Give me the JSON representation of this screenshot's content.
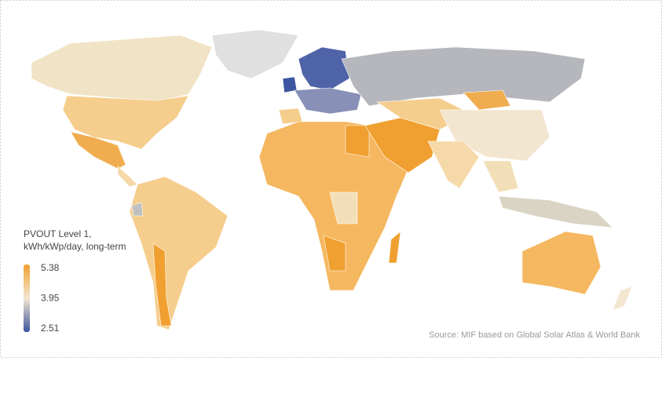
{
  "legend": {
    "title_line1": "PVOUT Level 1,",
    "title_line2": "kWh/kWp/day, long-term",
    "ticks": [
      5.38,
      3.95,
      2.51
    ],
    "colors": [
      "#f0a030",
      "#f3e6d0",
      "#3b55a0"
    ]
  },
  "source": "Source: MIF based on Global Solar Atlas & World Bank"
}
